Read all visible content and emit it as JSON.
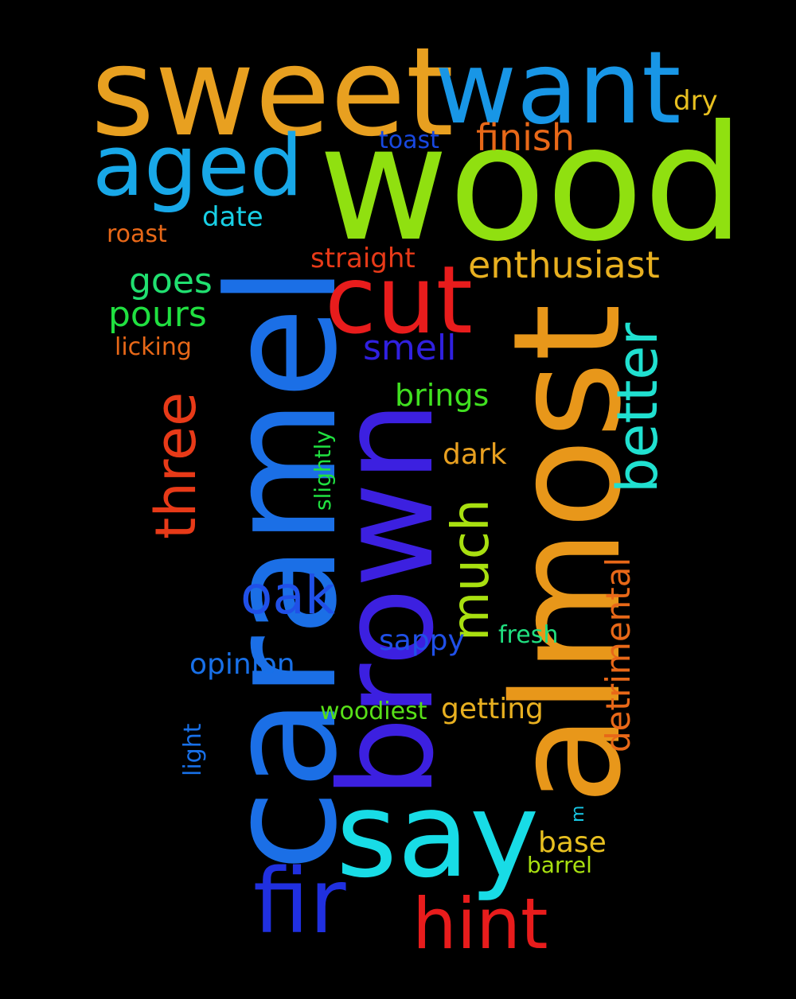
{
  "words": [
    {
      "text": "wood",
      "color": "#90e010"
    },
    {
      "text": "caramel",
      "color": "#1b6fe6"
    },
    {
      "text": "almost",
      "color": "#e8971a"
    },
    {
      "text": "brown",
      "color": "#3c20e0"
    },
    {
      "text": "sweet",
      "color": "#e8a020"
    },
    {
      "text": "say",
      "color": "#18dce6"
    },
    {
      "text": "want",
      "color": "#1896e6"
    },
    {
      "text": "aged",
      "color": "#18a8e8"
    },
    {
      "text": "cut",
      "color": "#e81c1c"
    },
    {
      "text": "fir",
      "color": "#2030e0"
    },
    {
      "text": "hint",
      "color": "#e81c1c"
    },
    {
      "text": "three",
      "color": "#e83a18"
    },
    {
      "text": "better",
      "color": "#20e0d0"
    },
    {
      "text": "much",
      "color": "#a8e010"
    },
    {
      "text": "oak",
      "color": "#2050e8"
    },
    {
      "text": "enthusiast",
      "color": "#e8b020"
    },
    {
      "text": "finish",
      "color": "#e86818"
    },
    {
      "text": "detrimental",
      "color": "#e86818"
    },
    {
      "text": "smell",
      "color": "#3020e0"
    },
    {
      "text": "pours",
      "color": "#20e040"
    },
    {
      "text": "goes",
      "color": "#20e070"
    },
    {
      "text": "brings",
      "color": "#40e020"
    },
    {
      "text": "straight",
      "color": "#e83a18"
    },
    {
      "text": "dark",
      "color": "#e8a020"
    },
    {
      "text": "sappy",
      "color": "#2050e8"
    },
    {
      "text": "opinion",
      "color": "#1870e8"
    },
    {
      "text": "getting",
      "color": "#e8b020"
    },
    {
      "text": "base",
      "color": "#e8c020"
    },
    {
      "text": "date",
      "color": "#18d0e6"
    },
    {
      "text": "dry",
      "color": "#e8c020"
    },
    {
      "text": "toast",
      "color": "#1848e0"
    },
    {
      "text": "roast",
      "color": "#e86818"
    },
    {
      "text": "licking",
      "color": "#e86818"
    },
    {
      "text": "slightly",
      "color": "#20e040"
    },
    {
      "text": "fresh",
      "color": "#20e080"
    },
    {
      "text": "woodiest",
      "color": "#58e018"
    },
    {
      "text": "light",
      "color": "#1870e8"
    },
    {
      "text": "barrel",
      "color": "#a8e010"
    },
    {
      "text": "m",
      "color": "#18c8e6"
    }
  ]
}
